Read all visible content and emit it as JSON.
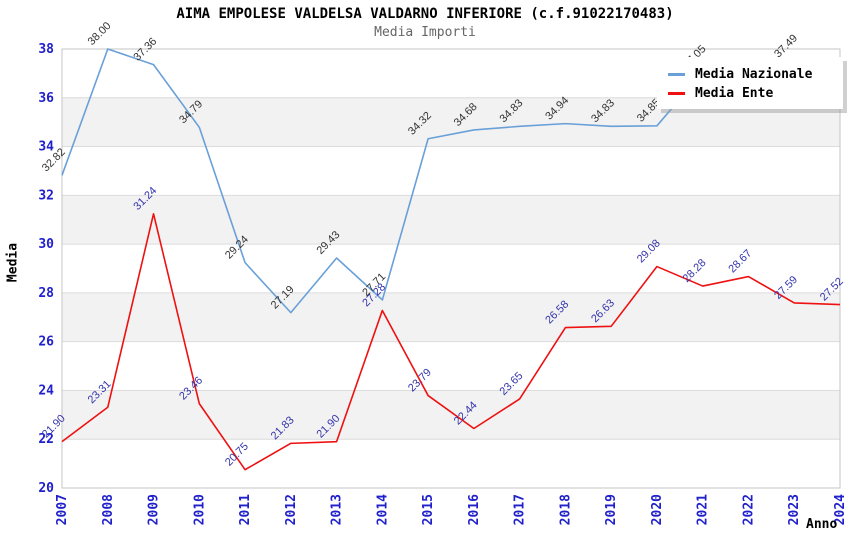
{
  "header": {
    "title": "AIMA EMPOLESE VALDELSA VALDARNO INFERIORE (c.f.91022170483)",
    "subtitle": "Media Importi"
  },
  "legend": {
    "items": [
      {
        "label": "Media Nazionale",
        "color": "#69a0d8"
      },
      {
        "label": "Media Ente",
        "color": "#ee1111"
      }
    ]
  },
  "axes": {
    "x_label": "Anno",
    "y_label": "Media",
    "tick_color": "#2020cc"
  },
  "chart_data": {
    "type": "line",
    "title": "AIMA EMPOLESE VALDELSA VALDARNO INFERIORE (c.f.91022170483)",
    "subtitle": "Media Importi",
    "xlabel": "Anno",
    "ylabel": "Media",
    "x": [
      "2007",
      "2008",
      "2009",
      "2010",
      "2011",
      "2012",
      "2013",
      "2014",
      "2015",
      "2016",
      "2017",
      "2018",
      "2019",
      "2020",
      "2021",
      "2022",
      "2023",
      "2024"
    ],
    "ylim": [
      20,
      38
    ],
    "yticks": [
      20,
      22,
      24,
      26,
      28,
      30,
      32,
      34,
      36,
      38
    ],
    "grid": true,
    "legend_position": "top-right",
    "band_colors": [
      "#ffffff",
      "#f2f2f2"
    ],
    "grid_color": "#dcdcdc",
    "border_color": "#c6c6c6",
    "series": [
      {
        "name": "Media Nazionale",
        "color": "#69a0d8",
        "label_color": "#333333",
        "values": [
          32.82,
          38.0,
          37.36,
          34.79,
          29.24,
          27.19,
          29.43,
          27.71,
          34.32,
          34.68,
          34.83,
          34.94,
          34.83,
          34.85,
          37.05,
          37.2,
          37.49,
          37.5
        ],
        "labels": [
          "32.82",
          "38.00",
          "37.36",
          "34.79",
          "29.24",
          "27.19",
          "29.43",
          "27.71",
          "34.32",
          "34.68",
          "34.83",
          "34.94",
          "34.83",
          "34.85",
          "37.05",
          null,
          "37.49",
          null
        ]
      },
      {
        "name": "Media Ente",
        "color": "#ee1111",
        "label_color": "#3434ad",
        "values": [
          21.9,
          23.31,
          31.24,
          23.46,
          20.75,
          21.83,
          21.9,
          27.28,
          23.79,
          22.44,
          23.65,
          26.58,
          26.63,
          29.08,
          28.28,
          28.67,
          27.59,
          27.52
        ],
        "labels": [
          "21.90",
          "23.31",
          "31.24",
          "23.46",
          "20.75",
          "21.83",
          "21.90",
          "27.28",
          "23.79",
          "22.44",
          "23.65",
          "26.58",
          "26.63",
          "29.08",
          "28.28",
          "28.67",
          "27.59",
          "27.52"
        ]
      }
    ]
  }
}
